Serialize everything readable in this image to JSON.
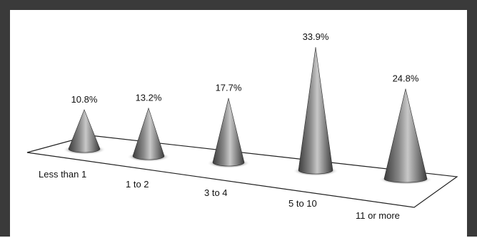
{
  "chart_data": {
    "type": "bar",
    "style": "3d-cone",
    "title": "",
    "xlabel": "",
    "ylabel": "",
    "categories": [
      "Less than 1",
      "1 to 2",
      "3 to 4",
      "5 to 10",
      "11 or more"
    ],
    "values": [
      10.8,
      13.2,
      17.7,
      33.9,
      24.8
    ],
    "value_labels": [
      "10.8%",
      "13.2%",
      "17.7%",
      "33.9%",
      "24.8%"
    ],
    "unit": "%",
    "grid": false,
    "legend": "none",
    "colors": {
      "cone_dark": "#3c3c3c",
      "cone_light": "#c8c8c8",
      "frame": "#3a3a3a"
    }
  }
}
